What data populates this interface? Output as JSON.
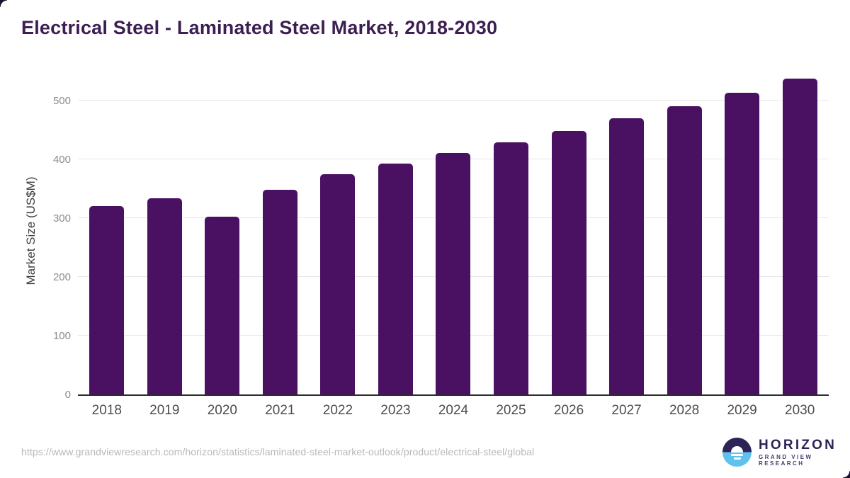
{
  "title": "Electrical Steel - Laminated Steel Market, 2018-2030",
  "chart_data": {
    "type": "bar",
    "title": "Electrical Steel - Laminated Steel Market, 2018-2030",
    "categories": [
      "2018",
      "2019",
      "2020",
      "2021",
      "2022",
      "2023",
      "2024",
      "2025",
      "2026",
      "2027",
      "2028",
      "2029",
      "2030"
    ],
    "values": [
      320,
      334,
      303,
      348,
      375,
      393,
      411,
      429,
      448,
      470,
      491,
      514,
      537
    ],
    "xlabel": "",
    "ylabel": "Market Size (US$M)",
    "ylim": [
      0,
      558
    ],
    "yticks": [
      0,
      100,
      200,
      300,
      400,
      500
    ],
    "grid": true,
    "legend": "none",
    "bar_color": "#4a1162"
  },
  "colors": {
    "title": "#3b1e52",
    "bar": "#4a1162",
    "gridline": "#e7e7e7",
    "axis_line": "#2d2d2d",
    "x_tick_label": "#4d4d4d",
    "y_tick_label": "#8c8c8c",
    "y_axis_title": "#3f3f3f",
    "source_url": "#b8b8b8",
    "logo_navy": "#2e2356",
    "logo_blue": "#5fc2ed",
    "corner_mark": "#1c1230"
  },
  "footer": {
    "source_url": "https://www.grandviewresearch.com/horizon/statistics/laminated-steel-market-outlook/product/electrical-steel/global",
    "logo": {
      "brand": "HORIZON",
      "tagline": "GRAND VIEW RESEARCH"
    }
  }
}
